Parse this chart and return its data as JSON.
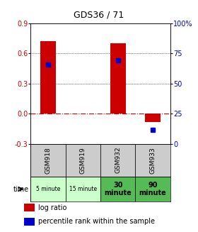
{
  "title": "GDS36 / 71",
  "samples": [
    "GSM918",
    "GSM919",
    "GSM932",
    "GSM933"
  ],
  "time_labels": [
    "5 minute",
    "15 minute",
    "30\nminute",
    "90\nminute"
  ],
  "time_colors": [
    "#ccffcc",
    "#ccffcc",
    "#55bb55",
    "#55bb55"
  ],
  "time_small": [
    true,
    true,
    false,
    false
  ],
  "log_ratios": [
    0.72,
    0.0,
    0.7,
    -0.08
  ],
  "percentile_ranks": [
    66,
    null,
    69,
    11.5
  ],
  "left_ylim": [
    -0.3,
    0.9
  ],
  "right_ylim": [
    0,
    100
  ],
  "left_yticks": [
    -0.3,
    0.0,
    0.3,
    0.6,
    0.9
  ],
  "right_yticks": [
    0,
    25,
    50,
    75,
    100
  ],
  "bar_color": "#cc0000",
  "dot_color": "#0000cc",
  "hline_color": "#cc0000",
  "grid_color": "#000000",
  "bg_color": "#ffffff",
  "sample_bg": "#cccccc",
  "left_label_color": "#cc0000",
  "right_label_color": "#0000cc"
}
